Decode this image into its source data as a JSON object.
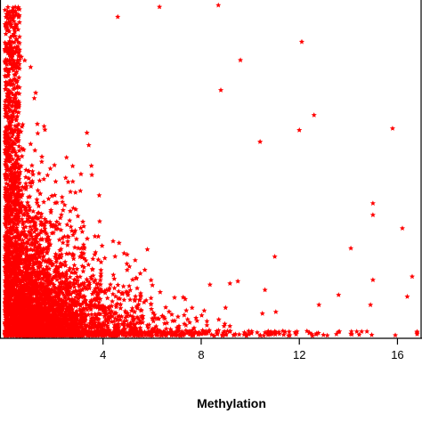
{
  "chart_data": {
    "type": "scatter",
    "xlabel": "Methylation",
    "ylabel": "",
    "title": "",
    "xlim": [
      -0.2,
      17.0
    ],
    "ylim": [
      0,
      100
    ],
    "x_ticks": [
      {
        "value": 4,
        "label": "4"
      },
      {
        "value": 8,
        "label": "8"
      },
      {
        "value": 12,
        "label": "12"
      },
      {
        "value": 16,
        "label": "16"
      }
    ],
    "grid": false,
    "marker": "star",
    "color": "#ff0000",
    "density": {
      "description_free": true,
      "n_points": 4200,
      "x_decay_scale": 1.6,
      "y_floor_fraction": 0.0,
      "y_decay_scale": 14
    },
    "outliers": [
      {
        "x": 12.1,
        "y": 88.5
      },
      {
        "x": 9.6,
        "y": 83.0
      },
      {
        "x": 8.8,
        "y": 74.0
      },
      {
        "x": 12.6,
        "y": 66.5
      },
      {
        "x": 12.0,
        "y": 62.0
      },
      {
        "x": 10.4,
        "y": 58.5
      },
      {
        "x": 15.8,
        "y": 62.5
      },
      {
        "x": 16.2,
        "y": 32.5
      },
      {
        "x": 15.0,
        "y": 40.0
      },
      {
        "x": 15.0,
        "y": 36.5
      },
      {
        "x": 14.1,
        "y": 26.5
      },
      {
        "x": 16.6,
        "y": 18.0
      },
      {
        "x": 15.0,
        "y": 17.0
      },
      {
        "x": 13.6,
        "y": 12.5
      },
      {
        "x": 16.4,
        "y": 12.0
      },
      {
        "x": 14.9,
        "y": 9.5
      },
      {
        "x": 12.8,
        "y": 9.5
      },
      {
        "x": 11.0,
        "y": 24.0
      },
      {
        "x": 10.6,
        "y": 14.0
      },
      {
        "x": 8.7,
        "y": 99.5
      },
      {
        "x": 6.3,
        "y": 99.0
      },
      {
        "x": 4.6,
        "y": 96.0
      }
    ]
  }
}
